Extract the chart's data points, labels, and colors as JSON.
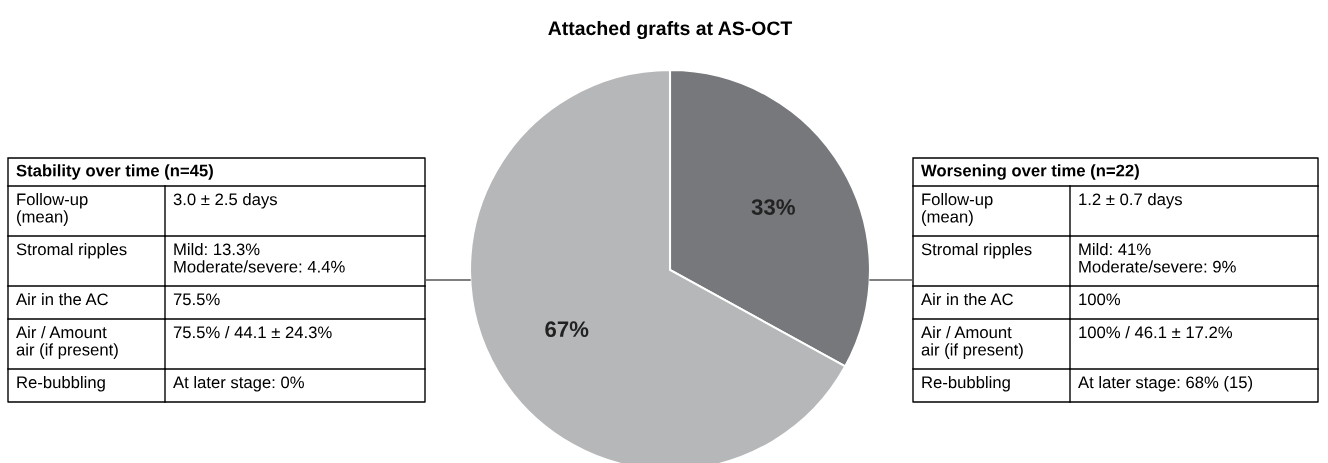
{
  "chart_data": [
    {
      "type": "other",
      "title": "Stability over time (n=45)",
      "annotations": [
        "Follow-up\n(mean)",
        "3.0 ± 2.5 days",
        "Stromal ripples",
        "Mild: 13.3%\nModerate/severe: 4.4%",
        "Air in the AC",
        "75.5%",
        "Air / Amount\nair (if present)",
        "75.5% / 44.1 ± 24.3%",
        "Re-bubbling",
        "At later stage: 0%"
      ]
    },
    {
      "type": "pie",
      "title": "Attached grafts at AS-OCT",
      "categories": [
        null,
        null
      ],
      "values": [
        33,
        67
      ],
      "value_labels": [
        "33%",
        "67%"
      ],
      "colors": [
        "#77787b",
        "#b6b7b9"
      ]
    },
    {
      "type": "other",
      "title": "Worsening over time (n=22)",
      "annotations": [
        "Follow-up\n(mean)",
        "1.2 ± 0.7 days",
        "Stromal ripples",
        "Mild: 41%\nModerate/severe: 9%",
        "Air in the AC",
        "100%",
        "Air / Amount\nair (if present)",
        "100% / 46.1 ± 17.2%",
        "Re-bubbling",
        "At later stage: 68% (15)"
      ]
    }
  ]
}
